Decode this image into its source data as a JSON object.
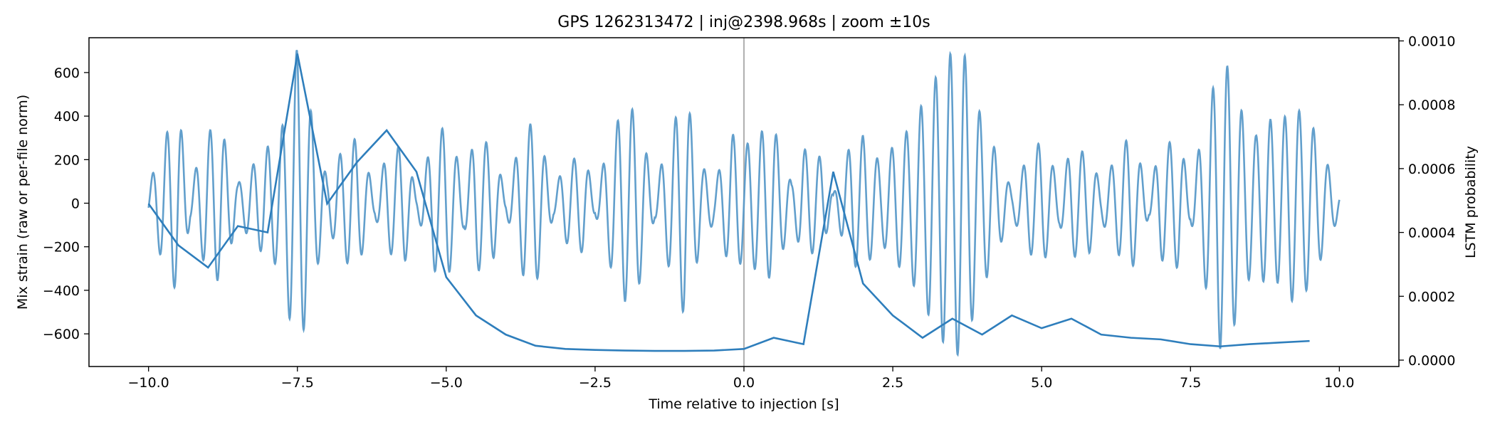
{
  "chart_data": {
    "type": "line",
    "title": "GPS 1262313472 | inj@2398.968s | zoom ±10s",
    "xlabel": "Time relative to injection [s]",
    "ylabel": "Mix strain (raw or per-file norm)",
    "ylabel_right": "LSTM probability",
    "xlim": [
      -11,
      11
    ],
    "ylim": [
      -750,
      760
    ],
    "ylim_right": [
      -2e-05,
      0.00101
    ],
    "xticks": [
      -10,
      -7.5,
      -5,
      -2.5,
      0,
      2.5,
      5,
      7.5,
      10
    ],
    "xtick_labels": [
      "−10.0",
      "−7.5",
      "−5.0",
      "−2.5",
      "0.0",
      "2.5",
      "5.0",
      "7.5",
      "10.0"
    ],
    "yticks": [
      -600,
      -400,
      -200,
      0,
      200,
      400,
      600
    ],
    "ytick_labels": [
      "−600",
      "−400",
      "−200",
      "0",
      "200",
      "400",
      "600"
    ],
    "yticks_right": [
      0,
      0.0002,
      0.0004,
      0.0006,
      0.0008,
      0.001
    ],
    "ytick_labels_right": [
      "0.0000",
      "0.0002",
      "0.0004",
      "0.0006",
      "0.0008",
      "0.0010"
    ],
    "injection_marker_x": 0,
    "series": [
      {
        "name": "Mix strain",
        "axis": "left",
        "color": "#5a9ac9",
        "time_range": [
          -10,
          10
        ],
        "carrier_frequency_hz": 4.1,
        "envelope": {
          "t": [
            -10,
            -9.7,
            -9.5,
            -9.3,
            -9.0,
            -8.8,
            -8.5,
            -8.0,
            -7.8,
            -7.5,
            -7.2,
            -7.0,
            -6.7,
            -6.5,
            -6.2,
            -6.0,
            -5.7,
            -5.5,
            -5.2,
            -5.0,
            -4.7,
            -4.5,
            -4.2,
            -4.0,
            -3.7,
            -3.5,
            -3.2,
            -3.0,
            -2.7,
            -2.5,
            -2.2,
            -2.0,
            -1.8,
            -1.5,
            -1.3,
            -1.0,
            -0.7,
            -0.5,
            -0.2,
            0.0,
            0.3,
            0.5,
            0.8,
            1.0,
            1.3,
            1.5,
            1.8,
            2.0,
            2.3,
            2.5,
            2.8,
            3.0,
            3.3,
            3.5,
            3.7,
            3.9,
            4.2,
            4.5,
            4.8,
            5.0,
            5.3,
            5.5,
            5.8,
            6.0,
            6.3,
            6.5,
            6.8,
            7.0,
            7.3,
            7.5,
            7.8,
            8.0,
            8.2,
            8.4,
            8.6,
            8.8,
            9.0,
            9.2,
            9.5,
            9.8,
            10.0
          ],
          "a": [
            80,
            320,
            420,
            80,
            330,
            360,
            90,
            260,
            290,
            720,
            330,
            110,
            270,
            300,
            60,
            220,
            280,
            40,
            310,
            360,
            110,
            320,
            250,
            40,
            340,
            380,
            60,
            180,
            230,
            50,
            330,
            450,
            420,
            70,
            260,
            520,
            170,
            90,
            320,
            260,
            330,
            350,
            90,
            250,
            210,
            40,
            280,
            310,
            180,
            260,
            350,
            460,
            620,
            700,
            690,
            460,
            260,
            60,
            230,
            290,
            100,
            250,
            230,
            80,
            240,
            320,
            60,
            260,
            300,
            80,
            440,
            670,
            600,
            380,
            310,
            390,
            360,
            450,
            390,
            180,
            60
          ]
        }
      },
      {
        "name": "LSTM probability",
        "axis": "right",
        "color": "#2e7ebc",
        "x": [
          -10.0,
          -9.5,
          -9.0,
          -8.5,
          -8.0,
          -7.5,
          -7.0,
          -6.5,
          -6.0,
          -5.5,
          -5.0,
          -4.5,
          -4.0,
          -3.5,
          -3.0,
          -2.5,
          -2.0,
          -1.5,
          -1.0,
          -0.5,
          0.0,
          0.5,
          1.0,
          1.5,
          2.0,
          2.5,
          3.0,
          3.5,
          4.0,
          4.5,
          5.0,
          5.5,
          6.0,
          6.5,
          7.0,
          7.5,
          8.0,
          8.5,
          9.0,
          9.5
        ],
        "y": [
          0.00049,
          0.00036,
          0.00029,
          0.00042,
          0.0004,
          0.00096,
          0.00049,
          0.00062,
          0.00072,
          0.00059,
          0.00026,
          0.00014,
          8e-05,
          4.5e-05,
          3.5e-05,
          3.2e-05,
          3e-05,
          2.9e-05,
          2.9e-05,
          3e-05,
          3.5e-05,
          7e-05,
          5e-05,
          0.00059,
          0.00024,
          0.00014,
          7e-05,
          0.00013,
          8e-05,
          0.00014,
          0.0001,
          0.00013,
          8e-05,
          7e-05,
          6.5e-05,
          5e-05,
          4.3e-05,
          5e-05,
          5.5e-05,
          6e-05
        ]
      }
    ]
  }
}
